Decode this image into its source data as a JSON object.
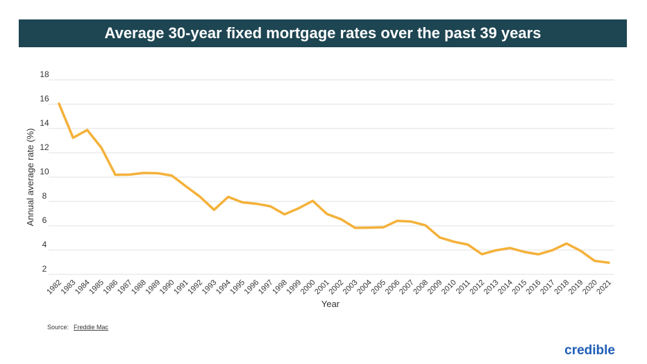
{
  "chart_data": {
    "type": "line",
    "title": "Average 30-year fixed mortgage rates over the past 39 years",
    "x_label": "Year",
    "y_label": "Annual average rate (%)",
    "source_label": "Source:",
    "source_name": "Freddie Mac",
    "logo": "credible",
    "categories": [
      "1982",
      "1983",
      "1984",
      "1985",
      "1986",
      "1987",
      "1988",
      "1989",
      "1990",
      "1991",
      "1992",
      "1993",
      "1994",
      "1995",
      "1996",
      "1997",
      "1998",
      "1999",
      "2000",
      "2001",
      "2002",
      "2003",
      "2004",
      "2005",
      "2006",
      "2007",
      "2008",
      "2009",
      "2010",
      "2011",
      "2012",
      "2013",
      "2014",
      "2015",
      "2016",
      "2017",
      "2018",
      "2019",
      "2020",
      "2021"
    ],
    "series": [
      {
        "name": "30-year fixed rate",
        "color": "#f4b13a",
        "values": [
          16.04,
          13.24,
          13.88,
          12.43,
          10.19,
          10.21,
          10.34,
          10.32,
          10.13,
          9.25,
          8.39,
          7.31,
          8.38,
          7.93,
          7.81,
          7.6,
          6.94,
          7.44,
          8.05,
          6.97,
          6.54,
          5.83,
          5.84,
          5.87,
          6.41,
          6.34,
          6.03,
          5.04,
          4.69,
          4.45,
          3.66,
          3.98,
          4.17,
          3.85,
          3.65,
          3.99,
          4.54,
          3.94,
          3.11,
          2.96
        ]
      }
    ],
    "ylim": [
      2,
      18
    ],
    "yticks": [
      2,
      4,
      6,
      8,
      10,
      12,
      14,
      16,
      18
    ],
    "grid": true
  }
}
